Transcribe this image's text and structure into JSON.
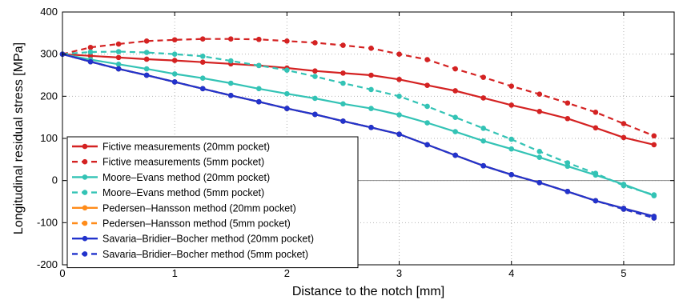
{
  "chart_data": {
    "type": "line",
    "title": "",
    "xlabel": "Distance to the notch [mm]",
    "ylabel": "Longitudinal residual stress [MPa]",
    "xlim": [
      0,
      5.45
    ],
    "ylim": [
      -200,
      400
    ],
    "xticks": [
      0,
      1,
      2,
      3,
      4,
      5
    ],
    "yticks": [
      -200,
      -100,
      0,
      100,
      200,
      300,
      400
    ],
    "grid": true,
    "legend_position": "lower-left",
    "series": [
      {
        "name": "Fictive measurements (20mm pocket)",
        "color": "#d42222",
        "dashed": false,
        "x": [
          0,
          0.25,
          0.5,
          0.75,
          1.0,
          1.25,
          1.5,
          1.75,
          2.0,
          2.25,
          2.5,
          2.75,
          3.0,
          3.25,
          3.5,
          3.75,
          4.0,
          4.25,
          4.5,
          4.75,
          5.0,
          5.27
        ],
        "values": [
          300,
          296,
          292,
          288,
          285,
          281,
          277,
          273,
          267,
          260,
          255,
          250,
          240,
          226,
          213,
          196,
          179,
          164,
          147,
          125,
          102,
          85
        ]
      },
      {
        "name": "Fictive measurements (5mm pocket)",
        "color": "#d42222",
        "dashed": true,
        "x": [
          0,
          0.25,
          0.5,
          0.75,
          1.0,
          1.25,
          1.5,
          1.75,
          2.0,
          2.25,
          2.5,
          2.75,
          3.0,
          3.25,
          3.5,
          3.75,
          4.0,
          4.25,
          4.5,
          4.75,
          5.0,
          5.27
        ],
        "values": [
          300,
          316,
          324,
          331,
          334,
          336,
          336,
          335,
          331,
          327,
          321,
          314,
          300,
          287,
          265,
          245,
          224,
          205,
          184,
          162,
          135,
          106
        ]
      },
      {
        "name": "Moore–Evans method (20mm pocket)",
        "color": "#33c3b5",
        "dashed": false,
        "x": [
          0,
          0.25,
          0.5,
          0.75,
          1.0,
          1.25,
          1.5,
          1.75,
          2.0,
          2.25,
          2.5,
          2.75,
          3.0,
          3.25,
          3.5,
          3.75,
          4.0,
          4.25,
          4.5,
          4.75,
          5.0,
          5.27
        ],
        "values": [
          300,
          287,
          276,
          265,
          253,
          243,
          231,
          218,
          206,
          195,
          182,
          171,
          156,
          137,
          116,
          94,
          75,
          55,
          34,
          13,
          -9,
          -36
        ]
      },
      {
        "name": "Moore–Evans method (5mm pocket)",
        "color": "#33c3b5",
        "dashed": true,
        "x": [
          0,
          0.25,
          0.5,
          0.75,
          1.0,
          1.25,
          1.5,
          1.75,
          2.0,
          2.25,
          2.5,
          2.75,
          3.0,
          3.25,
          3.5,
          3.75,
          4.0,
          4.25,
          4.5,
          4.75,
          5.0,
          5.27
        ],
        "values": [
          300,
          305,
          306,
          304,
          300,
          295,
          284,
          273,
          262,
          247,
          231,
          216,
          200,
          176,
          150,
          124,
          98,
          69,
          42,
          17,
          -12,
          -34
        ]
      },
      {
        "name": "Pedersen–Hansson method (20mm pocket)",
        "color": "#ff8c1a",
        "dashed": false,
        "x": [
          0,
          0.25,
          0.5,
          0.75,
          1.0,
          1.25,
          1.5,
          1.75,
          2.0,
          2.25,
          2.5,
          2.75,
          3.0,
          3.25,
          3.5,
          3.75,
          4.0,
          4.25,
          4.5,
          4.75,
          5.0,
          5.27
        ],
        "values": [
          300,
          282,
          265,
          250,
          234,
          218,
          202,
          187,
          171,
          157,
          141,
          126,
          110,
          85,
          60,
          35,
          14,
          -5,
          -26,
          -48,
          -66,
          -85
        ]
      },
      {
        "name": "Pedersen–Hansson method (5mm pocket)",
        "color": "#ff8c1a",
        "dashed": true,
        "x": [
          0,
          0.25,
          0.5,
          0.75,
          1.0,
          1.25,
          1.5,
          1.75,
          2.0,
          2.25,
          2.5,
          2.75,
          3.0,
          3.25,
          3.5,
          3.75,
          4.0,
          4.25,
          4.5,
          4.75,
          5.0,
          5.27
        ],
        "values": [
          300,
          282,
          265,
          250,
          234,
          218,
          202,
          187,
          171,
          157,
          141,
          126,
          110,
          85,
          60,
          35,
          14,
          -5,
          -26,
          -48,
          -68,
          -89
        ]
      },
      {
        "name": "Savaria–Bridier–Bocher method (20mm pocket)",
        "color": "#2233cc",
        "dashed": false,
        "x": [
          0,
          0.25,
          0.5,
          0.75,
          1.0,
          1.25,
          1.5,
          1.75,
          2.0,
          2.25,
          2.5,
          2.75,
          3.0,
          3.25,
          3.5,
          3.75,
          4.0,
          4.25,
          4.5,
          4.75,
          5.0,
          5.27
        ],
        "values": [
          300,
          282,
          265,
          250,
          234,
          218,
          202,
          187,
          171,
          157,
          141,
          126,
          110,
          85,
          60,
          35,
          14,
          -5,
          -26,
          -48,
          -66,
          -85
        ]
      },
      {
        "name": "Savaria–Bridier–Bocher method (5mm pocket)",
        "color": "#2233cc",
        "dashed": true,
        "x": [
          0,
          0.25,
          0.5,
          0.75,
          1.0,
          1.25,
          1.5,
          1.75,
          2.0,
          2.25,
          2.5,
          2.75,
          3.0,
          3.25,
          3.5,
          3.75,
          4.0,
          4.25,
          4.5,
          4.75,
          5.0,
          5.27
        ],
        "values": [
          300,
          282,
          265,
          250,
          234,
          218,
          202,
          187,
          171,
          157,
          141,
          126,
          110,
          85,
          60,
          35,
          14,
          -5,
          -26,
          -48,
          -68,
          -89
        ]
      }
    ]
  }
}
